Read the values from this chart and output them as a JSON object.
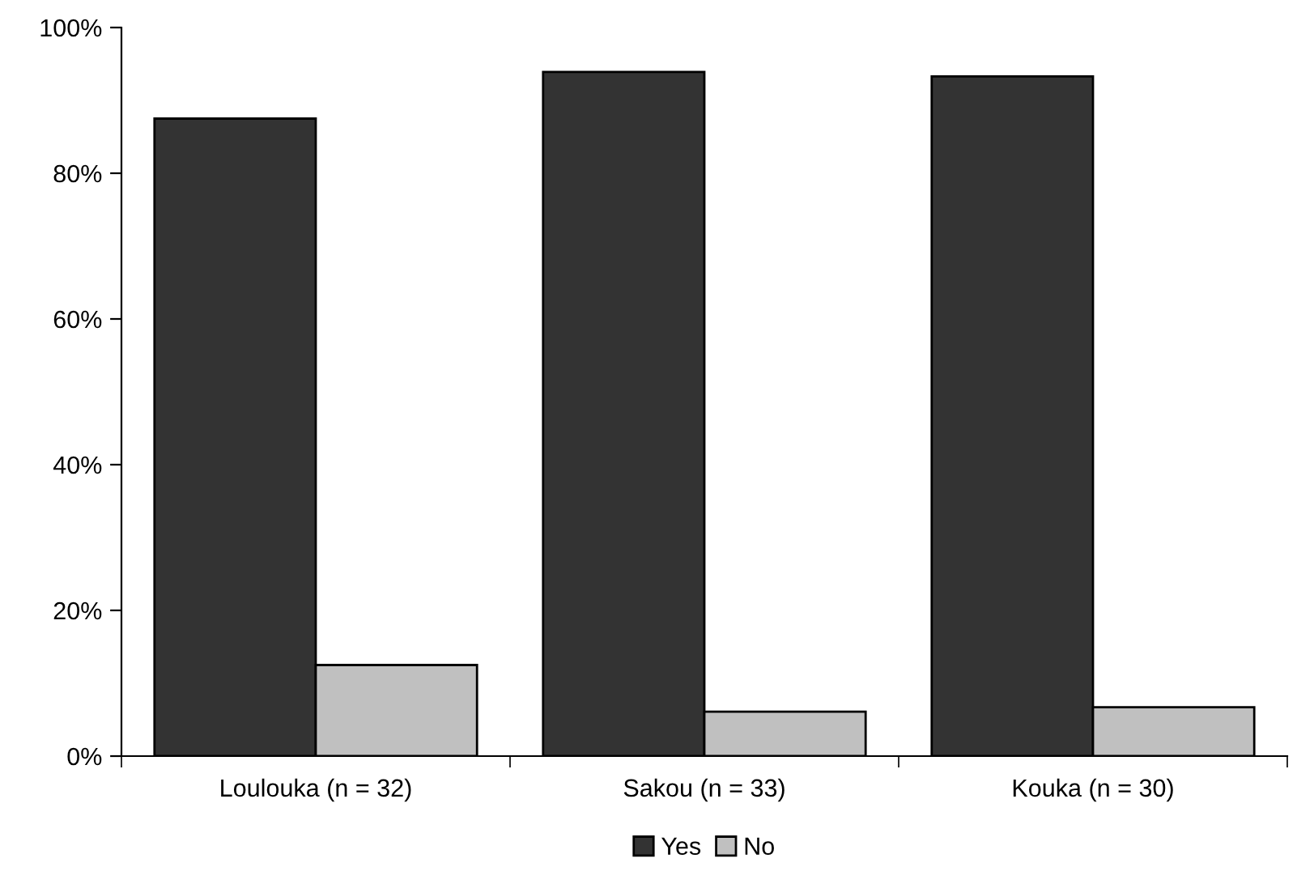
{
  "chart_data": {
    "type": "bar",
    "categories": [
      "Loulouka (n = 32)",
      "Sakou (n = 33)",
      "Kouka (n = 30)"
    ],
    "series": [
      {
        "name": "Yes",
        "color": "#333333",
        "values": [
          87.5,
          93.9,
          93.3
        ]
      },
      {
        "name": "No",
        "color": "#c0c0c0",
        "values": [
          12.5,
          6.1,
          6.7
        ]
      }
    ],
    "ylim": [
      0,
      100
    ],
    "yticks": [
      {
        "value": 0,
        "label": "0%"
      },
      {
        "value": 20,
        "label": "20%"
      },
      {
        "value": 40,
        "label": "40%"
      },
      {
        "value": 60,
        "label": "60%"
      },
      {
        "value": 80,
        "label": "80%"
      },
      {
        "value": 100,
        "label": "100%"
      }
    ],
    "grid": false,
    "legend": "bottom"
  }
}
